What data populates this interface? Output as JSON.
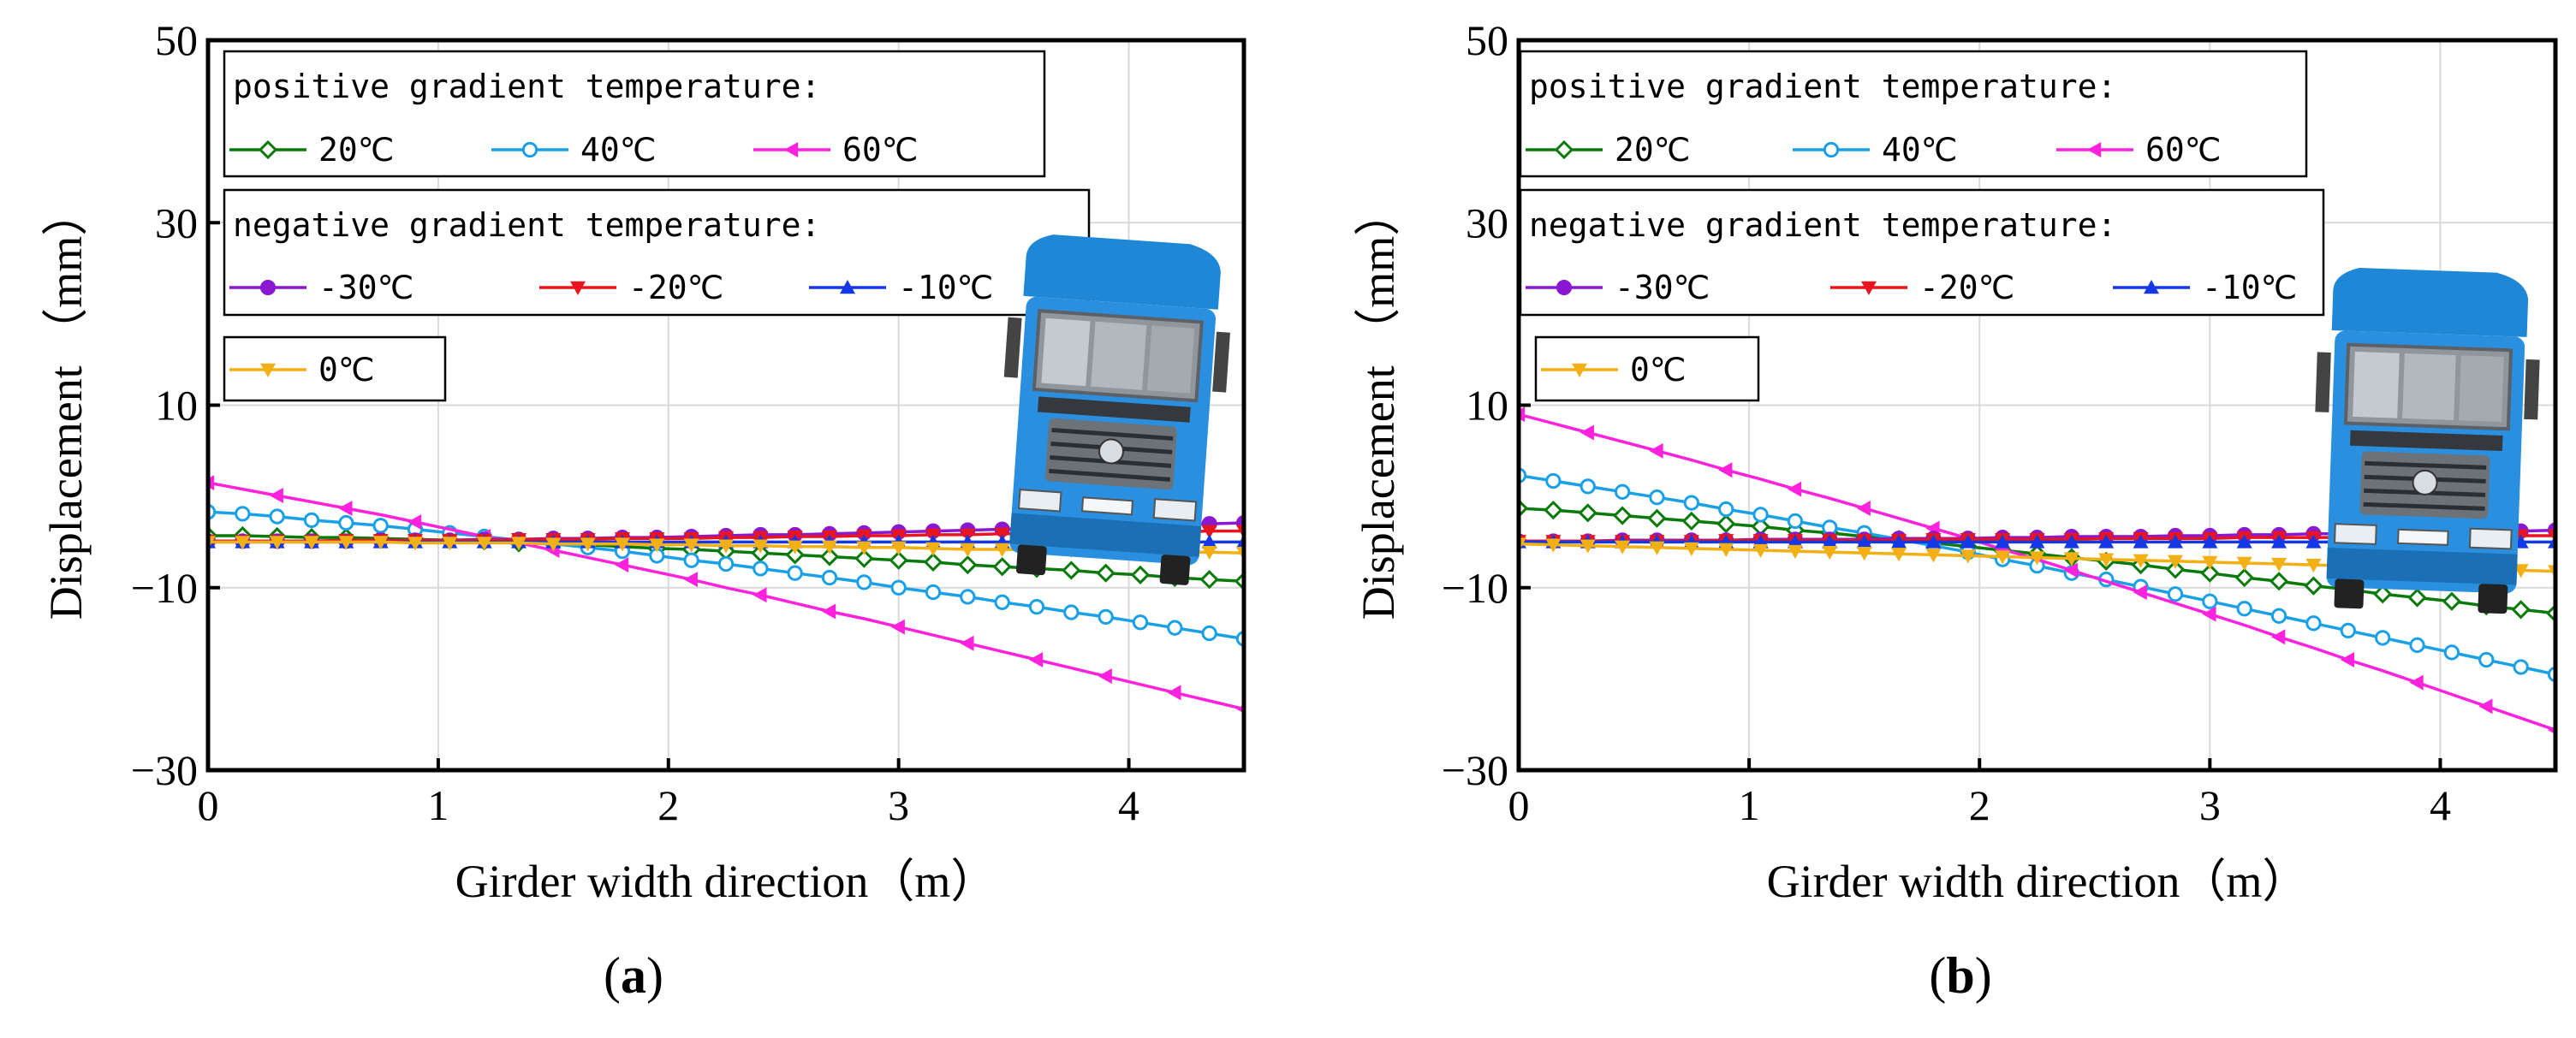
{
  "figure": {
    "panel_labels": [
      "(a)",
      "(b)"
    ]
  },
  "series_styles": [
    {
      "key": "p20",
      "color": "#0a7a0a",
      "marker": "diamond-open"
    },
    {
      "key": "p40",
      "color": "#1aa0e6",
      "marker": "circle-open"
    },
    {
      "key": "p60",
      "color": "#ff22dd",
      "marker": "tri-left"
    },
    {
      "key": "n30",
      "color": "#8a18d0",
      "marker": "circle"
    },
    {
      "key": "n20",
      "color": "#e8141e",
      "marker": "tri-down"
    },
    {
      "key": "n10",
      "color": "#1438e6",
      "marker": "tri-up"
    },
    {
      "key": "z0",
      "color": "#f2b014",
      "marker": "tri-down"
    }
  ],
  "chart_data": [
    {
      "type": "line",
      "panel": "(a)",
      "xlabel": "Girder width direction（m）",
      "ylabel": "Displacement （mm）",
      "xlim": [
        0,
        4.5
      ],
      "ylim": [
        -30,
        50
      ],
      "xticks": [
        0,
        1,
        2,
        3,
        4
      ],
      "yticks": [
        -30,
        -10,
        10,
        30,
        50
      ],
      "x": [
        0.0,
        0.15,
        0.3,
        0.45,
        0.6,
        0.75,
        0.9,
        1.05,
        1.2,
        1.35,
        1.5,
        1.65,
        1.8,
        1.95,
        2.1,
        2.25,
        2.4,
        2.55,
        2.7,
        2.85,
        3.0,
        3.15,
        3.3,
        3.45,
        3.6,
        3.75,
        3.9,
        4.05,
        4.2,
        4.35,
        4.5
      ],
      "legend": {
        "positive_title": "positive gradient temperature:",
        "negative_title": "negative gradient temperature:"
      },
      "series": [
        {
          "name": "20℃",
          "group": "positive",
          "values": [
            -4.3,
            -4.3,
            -4.4,
            -4.5,
            -4.5,
            -4.6,
            -4.7,
            -4.8,
            -4.9,
            -5.1,
            -5.2,
            -5.3,
            -5.5,
            -5.7,
            -5.8,
            -6.0,
            -6.2,
            -6.4,
            -6.6,
            -6.8,
            -7.0,
            -7.2,
            -7.5,
            -7.7,
            -7.9,
            -8.1,
            -8.4,
            -8.6,
            -8.9,
            -9.1,
            -9.3
          ]
        },
        {
          "name": "40℃",
          "group": "positive",
          "values": [
            -1.7,
            -1.9,
            -2.2,
            -2.6,
            -2.9,
            -3.2,
            -3.6,
            -4.0,
            -4.4,
            -4.8,
            -5.2,
            -5.6,
            -6.0,
            -6.5,
            -7.0,
            -7.4,
            -7.9,
            -8.4,
            -8.9,
            -9.4,
            -10.0,
            -10.5,
            -11.0,
            -11.6,
            -12.1,
            -12.7,
            -13.2,
            -13.8,
            -14.4,
            -15.0,
            -15.6
          ]
        },
        {
          "name": "60℃",
          "group": "positive",
          "values": [
            1.5,
            0.8,
            0.1,
            -0.6,
            -1.3,
            -2.0,
            -2.8,
            -3.6,
            -4.4,
            -5.1,
            -5.9,
            -6.7,
            -7.5,
            -8.3,
            -9.1,
            -10.0,
            -10.8,
            -11.7,
            -12.6,
            -13.4,
            -14.3,
            -15.2,
            -16.1,
            -17.0,
            -17.9,
            -18.8,
            -19.7,
            -20.6,
            -21.5,
            -22.4,
            -23.3
          ]
        },
        {
          "name": "-30℃",
          "group": "negative",
          "values": [
            -4.9,
            -4.9,
            -4.9,
            -4.9,
            -4.9,
            -4.8,
            -4.8,
            -4.8,
            -4.7,
            -4.7,
            -4.6,
            -4.6,
            -4.5,
            -4.5,
            -4.4,
            -4.3,
            -4.2,
            -4.2,
            -4.1,
            -4.0,
            -3.9,
            -3.8,
            -3.7,
            -3.6,
            -3.5,
            -3.4,
            -3.3,
            -3.2,
            -3.1,
            -3.0,
            -2.9
          ]
        },
        {
          "name": "-20℃",
          "group": "negative",
          "values": [
            -4.9,
            -4.9,
            -4.9,
            -4.9,
            -4.8,
            -4.8,
            -4.8,
            -4.8,
            -4.8,
            -4.7,
            -4.7,
            -4.7,
            -4.6,
            -4.6,
            -4.6,
            -4.5,
            -4.5,
            -4.4,
            -4.4,
            -4.3,
            -4.3,
            -4.2,
            -4.2,
            -4.1,
            -4.1,
            -4.0,
            -4.0,
            -3.9,
            -3.9,
            -3.8,
            -3.8
          ]
        },
        {
          "name": "-10℃",
          "group": "negative",
          "values": [
            -5.0,
            -5.0,
            -5.0,
            -5.0,
            -5.0,
            -5.0,
            -5.0,
            -5.0,
            -5.0,
            -5.0,
            -5.0,
            -5.0,
            -5.0,
            -5.0,
            -5.0,
            -5.0,
            -5.0,
            -5.0,
            -5.0,
            -5.0,
            -5.0,
            -5.0,
            -5.0,
            -5.0,
            -5.0,
            -5.0,
            -5.0,
            -5.0,
            -5.0,
            -5.0,
            -5.0
          ]
        },
        {
          "name": "0℃",
          "group": "zero",
          "values": [
            -5.0,
            -5.0,
            -5.0,
            -5.0,
            -5.0,
            -5.0,
            -5.1,
            -5.1,
            -5.1,
            -5.1,
            -5.2,
            -5.2,
            -5.2,
            -5.3,
            -5.3,
            -5.4,
            -5.4,
            -5.5,
            -5.5,
            -5.6,
            -5.6,
            -5.7,
            -5.8,
            -5.8,
            -5.9,
            -5.9,
            -6.0,
            -6.0,
            -6.1,
            -6.1,
            -6.2
          ]
        }
      ]
    },
    {
      "type": "line",
      "panel": "(b)",
      "xlabel": "Girder width direction（m）",
      "ylabel": "Displacement （mm）",
      "xlim": [
        0,
        4.5
      ],
      "ylim": [
        -30,
        50
      ],
      "xticks": [
        0,
        1,
        2,
        3,
        4
      ],
      "yticks": [
        -30,
        -10,
        10,
        30,
        50
      ],
      "x": [
        0.0,
        0.15,
        0.3,
        0.45,
        0.6,
        0.75,
        0.9,
        1.05,
        1.2,
        1.35,
        1.5,
        1.65,
        1.8,
        1.95,
        2.1,
        2.25,
        2.4,
        2.55,
        2.7,
        2.85,
        3.0,
        3.15,
        3.3,
        3.45,
        3.6,
        3.75,
        3.9,
        4.05,
        4.2,
        4.35,
        4.5
      ],
      "legend": {
        "positive_title": "positive gradient temperature:",
        "negative_title": "negative gradient temperature:"
      },
      "series": [
        {
          "name": "20℃",
          "group": "positive",
          "values": [
            -1.3,
            -1.5,
            -1.8,
            -2.1,
            -2.4,
            -2.7,
            -3.0,
            -3.3,
            -3.7,
            -4.0,
            -4.4,
            -4.7,
            -5.1,
            -5.5,
            -5.9,
            -6.3,
            -6.7,
            -7.1,
            -7.5,
            -8.0,
            -8.4,
            -8.9,
            -9.3,
            -9.8,
            -10.2,
            -10.7,
            -11.1,
            -11.5,
            -12.0,
            -12.4,
            -12.8
          ]
        },
        {
          "name": "40℃",
          "group": "positive",
          "values": [
            2.3,
            1.7,
            1.1,
            0.5,
            -0.1,
            -0.7,
            -1.4,
            -2.0,
            -2.7,
            -3.4,
            -4.0,
            -4.7,
            -5.4,
            -6.1,
            -6.9,
            -7.6,
            -8.4,
            -9.1,
            -9.9,
            -10.7,
            -11.5,
            -12.3,
            -13.1,
            -13.9,
            -14.7,
            -15.5,
            -16.3,
            -17.1,
            -17.9,
            -18.7,
            -19.5
          ]
        },
        {
          "name": "60℃",
          "group": "positive",
          "values": [
            9.0,
            8.0,
            7.0,
            6.0,
            5.0,
            4.0,
            2.9,
            1.9,
            0.8,
            -0.2,
            -1.3,
            -2.4,
            -3.5,
            -4.6,
            -5.8,
            -6.9,
            -8.1,
            -9.3,
            -10.5,
            -11.7,
            -12.9,
            -14.1,
            -15.4,
            -16.6,
            -17.9,
            -19.1,
            -20.4,
            -21.7,
            -23.0,
            -24.3,
            -25.6
          ]
        },
        {
          "name": "-30℃",
          "group": "negative",
          "values": [
            -4.9,
            -4.9,
            -4.9,
            -4.8,
            -4.8,
            -4.8,
            -4.8,
            -4.7,
            -4.7,
            -4.7,
            -4.7,
            -4.6,
            -4.6,
            -4.6,
            -4.5,
            -4.5,
            -4.4,
            -4.4,
            -4.4,
            -4.3,
            -4.3,
            -4.2,
            -4.2,
            -4.1,
            -4.1,
            -4.0,
            -4.0,
            -3.9,
            -3.8,
            -3.8,
            -3.7
          ]
        },
        {
          "name": "-20℃",
          "group": "negative",
          "values": [
            -4.9,
            -4.9,
            -4.9,
            -4.9,
            -4.9,
            -4.9,
            -4.8,
            -4.8,
            -4.8,
            -4.8,
            -4.8,
            -4.8,
            -4.7,
            -4.7,
            -4.7,
            -4.7,
            -4.7,
            -4.6,
            -4.6,
            -4.6,
            -4.6,
            -4.5,
            -4.5,
            -4.5,
            -4.5,
            -4.4,
            -4.4,
            -4.4,
            -4.4,
            -4.3,
            -4.3
          ]
        },
        {
          "name": "-10℃",
          "group": "negative",
          "values": [
            -5.0,
            -5.0,
            -5.0,
            -5.0,
            -5.0,
            -5.0,
            -5.0,
            -5.0,
            -5.0,
            -5.0,
            -5.0,
            -5.0,
            -5.0,
            -5.0,
            -5.0,
            -5.0,
            -5.0,
            -5.0,
            -5.0,
            -5.0,
            -5.0,
            -5.0,
            -5.0,
            -5.0,
            -5.0,
            -5.0,
            -5.0,
            -5.0,
            -5.0,
            -5.0,
            -5.0
          ]
        },
        {
          "name": "0℃",
          "group": "zero",
          "values": [
            -5.2,
            -5.3,
            -5.4,
            -5.5,
            -5.6,
            -5.7,
            -5.8,
            -5.9,
            -6.0,
            -6.1,
            -6.2,
            -6.3,
            -6.4,
            -6.5,
            -6.6,
            -6.7,
            -6.8,
            -6.9,
            -7.0,
            -7.1,
            -7.2,
            -7.3,
            -7.4,
            -7.5,
            -7.6,
            -7.7,
            -7.8,
            -7.9,
            -8.0,
            -8.1,
            -8.2
          ]
        }
      ]
    }
  ]
}
